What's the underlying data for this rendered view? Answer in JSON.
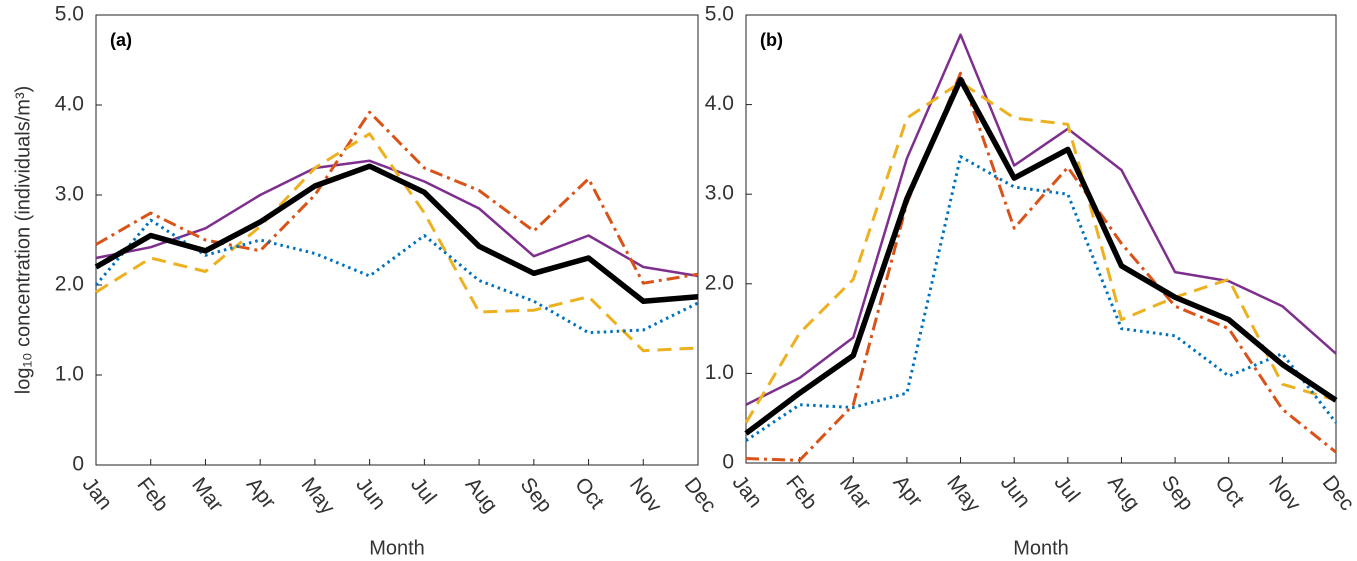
{
  "chart_data": [
    {
      "type": "line",
      "title": "(a)",
      "xlabel": "Month",
      "ylabel": "log₁₀ concentration (individuals/m³)",
      "categories": [
        "Jan",
        "Feb",
        "Mar",
        "Apr",
        "May",
        "Jun",
        "Jul",
        "Aug",
        "Sep",
        "Oct",
        "Nov",
        "Dec"
      ],
      "ylim": [
        0,
        5
      ],
      "yticks": [
        0,
        {
          "value": 1,
          "label": "1.0"
        },
        {
          "value": 2,
          "label": "2.0"
        },
        {
          "value": 3,
          "label": "3.0"
        },
        {
          "value": 4,
          "label": "4.0"
        },
        {
          "value": 5,
          "label": "5.0"
        }
      ],
      "grid": false,
      "series": [
        {
          "color": "#7e2f8e",
          "style": "solid",
          "values": [
            2.3,
            2.42,
            2.63,
            3.0,
            3.3,
            3.38,
            3.15,
            2.85,
            2.32,
            2.55,
            2.2,
            2.1
          ]
        },
        {
          "color": "#d95319",
          "style": "dashdot",
          "values": [
            2.45,
            2.8,
            2.5,
            2.38,
            3.0,
            3.92,
            3.3,
            3.05,
            2.6,
            3.18,
            2.02,
            2.12
          ]
        },
        {
          "color": "#edb120",
          "style": "dashed",
          "values": [
            1.92,
            2.3,
            2.15,
            2.65,
            3.3,
            3.68,
            2.8,
            1.7,
            1.72,
            1.87,
            1.27,
            1.3
          ]
        },
        {
          "color": "#0072bd",
          "style": "dotted",
          "values": [
            2.0,
            2.72,
            2.33,
            2.5,
            2.35,
            2.1,
            2.55,
            2.05,
            1.82,
            1.47,
            1.5,
            1.8
          ]
        },
        {
          "color": "#000000",
          "style": "thick",
          "values": [
            2.2,
            2.55,
            2.38,
            2.7,
            3.1,
            3.32,
            3.03,
            2.43,
            2.13,
            2.3,
            1.82,
            1.87
          ]
        }
      ]
    },
    {
      "type": "line",
      "title": "(b)",
      "xlabel": "Month",
      "categories": [
        "Jan",
        "Feb",
        "Mar",
        "Apr",
        "May",
        "Jun",
        "Jul",
        "Aug",
        "Sep",
        "Oct",
        "Nov",
        "Dec"
      ],
      "ylim": [
        0,
        5
      ],
      "yticks": [
        0,
        {
          "value": 1,
          "label": "1.0"
        },
        {
          "value": 2,
          "label": "2.0"
        },
        {
          "value": 3,
          "label": "3.0"
        },
        {
          "value": 4,
          "label": "4.0"
        },
        {
          "value": 5,
          "label": "5.0"
        }
      ],
      "grid": false,
      "series": [
        {
          "color": "#7e2f8e",
          "style": "solid",
          "values": [
            0.65,
            0.95,
            1.4,
            3.4,
            4.78,
            3.32,
            3.73,
            3.27,
            2.13,
            2.03,
            1.75,
            1.22
          ]
        },
        {
          "color": "#d95319",
          "style": "dashdot",
          "values": [
            0.05,
            0.03,
            0.65,
            2.9,
            4.35,
            2.62,
            3.3,
            2.45,
            1.75,
            1.5,
            0.6,
            0.12
          ]
        },
        {
          "color": "#edb120",
          "style": "dashed",
          "values": [
            0.45,
            1.45,
            2.05,
            3.85,
            4.25,
            3.85,
            3.78,
            1.6,
            1.85,
            2.05,
            0.88,
            0.7
          ]
        },
        {
          "color": "#0072bd",
          "style": "dotted",
          "values": [
            0.25,
            0.65,
            0.62,
            0.78,
            3.42,
            3.08,
            3.0,
            1.5,
            1.42,
            0.97,
            1.22,
            0.45
          ]
        },
        {
          "color": "#000000",
          "style": "thick",
          "values": [
            0.33,
            0.78,
            1.2,
            2.95,
            4.28,
            3.18,
            3.5,
            2.2,
            1.85,
            1.6,
            1.1,
            0.7
          ]
        }
      ]
    }
  ]
}
